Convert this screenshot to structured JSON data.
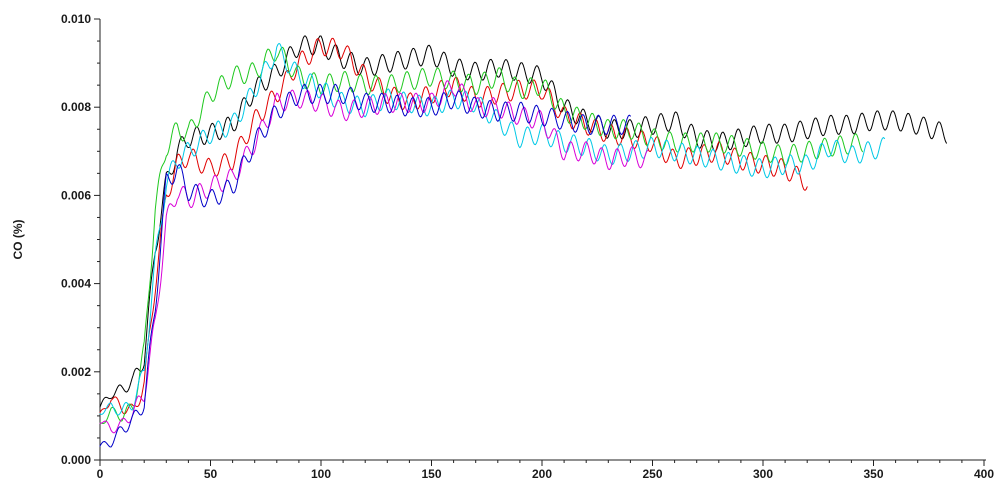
{
  "chart_data": {
    "type": "line",
    "title": "",
    "xlabel": "",
    "ylabel": "CO (%)",
    "xlim": [
      0,
      400
    ],
    "ylim": [
      0,
      0.01
    ],
    "x_ticks": [
      "0",
      "50",
      "100",
      "150",
      "200",
      "250",
      "300",
      "350",
      "400"
    ],
    "y_ticks": [
      "0.000",
      "0.002",
      "0.004",
      "0.006",
      "0.008",
      "0.010"
    ],
    "x_tick_values": [
      0,
      50,
      100,
      150,
      200,
      250,
      300,
      350,
      400
    ],
    "y_tick_values": [
      0,
      0.002,
      0.004,
      0.006,
      0.008,
      0.01
    ],
    "grid": false,
    "legend": "none",
    "series": [
      {
        "color": "#000000",
        "x_end": 383,
        "oscillation": {
          "amplitude": 0.00022,
          "period": 7
        },
        "x": [
          0,
          5,
          10,
          15,
          20,
          25,
          30,
          35,
          40,
          50,
          60,
          70,
          80,
          90,
          100,
          110,
          120,
          130,
          140,
          150,
          160,
          170,
          180,
          190,
          200,
          210,
          220,
          230,
          240,
          250,
          260,
          270,
          280,
          290,
          300,
          310,
          320,
          330,
          340,
          350,
          360,
          370,
          383
        ],
        "y": [
          0.0012,
          0.0015,
          0.0016,
          0.0018,
          0.0023,
          0.0048,
          0.0063,
          0.007,
          0.0073,
          0.0074,
          0.0076,
          0.0084,
          0.0088,
          0.0094,
          0.0094,
          0.0091,
          0.0089,
          0.009,
          0.0091,
          0.0092,
          0.0089,
          0.0088,
          0.0089,
          0.0088,
          0.0087,
          0.008,
          0.0077,
          0.0075,
          0.0075,
          0.0076,
          0.0077,
          0.0073,
          0.0072,
          0.0073,
          0.0074,
          0.0074,
          0.0075,
          0.0076,
          0.0076,
          0.0077,
          0.0077,
          0.0076,
          0.0074
        ]
      },
      {
        "color": "#e00000",
        "x_end": 320,
        "oscillation": {
          "amplitude": 0.00022,
          "period": 7
        },
        "x": [
          0,
          5,
          10,
          15,
          20,
          25,
          30,
          35,
          40,
          50,
          60,
          70,
          80,
          90,
          100,
          110,
          120,
          130,
          140,
          150,
          160,
          170,
          180,
          190,
          200,
          210,
          220,
          230,
          240,
          250,
          260,
          270,
          280,
          290,
          300,
          310,
          320
        ],
        "y": [
          0.001,
          0.0014,
          0.0012,
          0.0011,
          0.0017,
          0.004,
          0.006,
          0.0067,
          0.0069,
          0.0066,
          0.0068,
          0.0077,
          0.0083,
          0.009,
          0.0094,
          0.0093,
          0.0087,
          0.0083,
          0.0081,
          0.0083,
          0.0085,
          0.0082,
          0.0083,
          0.0084,
          0.0084,
          0.0078,
          0.0076,
          0.0074,
          0.0073,
          0.0072,
          0.0068,
          0.0069,
          0.007,
          0.0068,
          0.0067,
          0.0066,
          0.0063
        ]
      },
      {
        "color": "#1fc81f",
        "x_end": 345,
        "oscillation": {
          "amplitude": 0.00022,
          "period": 7
        },
        "x": [
          0,
          5,
          10,
          15,
          20,
          25,
          30,
          35,
          40,
          50,
          60,
          70,
          80,
          90,
          100,
          110,
          120,
          130,
          140,
          150,
          160,
          170,
          180,
          190,
          200,
          210,
          220,
          230,
          240,
          250,
          260,
          270,
          280,
          290,
          300,
          310,
          320,
          330,
          345
        ],
        "y": [
          0.0008,
          0.0011,
          0.001,
          0.0012,
          0.0025,
          0.0057,
          0.0071,
          0.0075,
          0.0074,
          0.0083,
          0.0087,
          0.0088,
          0.0093,
          0.0087,
          0.0085,
          0.0086,
          0.0085,
          0.0085,
          0.0086,
          0.0087,
          0.0086,
          0.0085,
          0.0087,
          0.0084,
          0.0085,
          0.0079,
          0.0077,
          0.0075,
          0.0075,
          0.0073,
          0.0072,
          0.0072,
          0.0072,
          0.0071,
          0.007,
          0.0069,
          0.007,
          0.0071,
          0.0072
        ]
      },
      {
        "color": "#00c8e6",
        "x_end": 355,
        "oscillation": {
          "amplitude": 0.00022,
          "period": 7
        },
        "x": [
          0,
          5,
          10,
          15,
          20,
          25,
          30,
          35,
          40,
          50,
          60,
          70,
          80,
          90,
          100,
          110,
          120,
          130,
          140,
          150,
          160,
          170,
          180,
          190,
          200,
          210,
          220,
          230,
          240,
          250,
          260,
          270,
          280,
          290,
          300,
          310,
          320,
          330,
          340,
          355
        ],
        "y": [
          0.0011,
          0.0012,
          0.0011,
          0.0013,
          0.002,
          0.0045,
          0.0063,
          0.0068,
          0.007,
          0.0074,
          0.0076,
          0.0084,
          0.0093,
          0.0087,
          0.0084,
          0.0081,
          0.008,
          0.0082,
          0.0081,
          0.008,
          0.0082,
          0.0081,
          0.0077,
          0.0073,
          0.0074,
          0.0072,
          0.0071,
          0.0069,
          0.007,
          0.0071,
          0.007,
          0.0069,
          0.0068,
          0.0067,
          0.0066,
          0.0067,
          0.0067,
          0.0071,
          0.0069,
          0.0071
        ]
      },
      {
        "color": "#d800d8",
        "x_end": 248,
        "oscillation": {
          "amplitude": 0.00022,
          "period": 7
        },
        "x": [
          0,
          5,
          10,
          15,
          20,
          25,
          30,
          35,
          40,
          50,
          60,
          70,
          80,
          90,
          100,
          110,
          120,
          130,
          140,
          150,
          160,
          170,
          180,
          190,
          200,
          210,
          220,
          230,
          240,
          248
        ],
        "y": [
          0.0009,
          0.0007,
          0.0008,
          0.0011,
          0.0015,
          0.0031,
          0.0054,
          0.0061,
          0.0059,
          0.0062,
          0.0064,
          0.0072,
          0.0081,
          0.0082,
          0.0081,
          0.0079,
          0.008,
          0.0081,
          0.0081,
          0.0081,
          0.0085,
          0.008,
          0.008,
          0.0078,
          0.0077,
          0.007,
          0.007,
          0.0068,
          0.0069,
          0.0068
        ]
      },
      {
        "color": "#0000c8",
        "x_end": 240,
        "oscillation": {
          "amplitude": 0.00022,
          "period": 7
        },
        "x": [
          0,
          5,
          10,
          15,
          20,
          25,
          30,
          35,
          40,
          50,
          60,
          70,
          80,
          90,
          100,
          110,
          120,
          130,
          140,
          150,
          160,
          170,
          180,
          190,
          200,
          210,
          220,
          230,
          240
        ],
        "y": [
          0.0003,
          0.0004,
          0.0007,
          0.0009,
          0.0013,
          0.0035,
          0.0063,
          0.0066,
          0.0061,
          0.0059,
          0.0062,
          0.0072,
          0.0079,
          0.0083,
          0.0083,
          0.0083,
          0.0081,
          0.0081,
          0.008,
          0.008,
          0.0082,
          0.008,
          0.0079,
          0.0079,
          0.0078,
          0.0077,
          0.0076,
          0.0076,
          0.0076
        ]
      }
    ]
  }
}
